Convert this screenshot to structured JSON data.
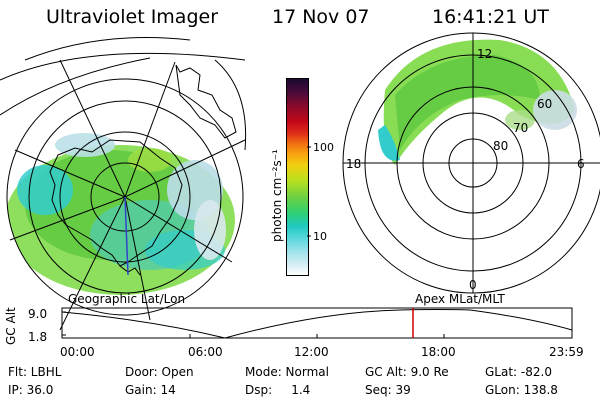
{
  "header": {
    "title": "Ultraviolet Imager",
    "date": "17 Nov 07",
    "time": "16:41:21 UT"
  },
  "left_panel": {
    "caption": "Geographic Lat/Lon"
  },
  "right_panel": {
    "caption": "Apex MLat/MLT",
    "mlt_labels": {
      "top": "12",
      "left": "18",
      "right": "6",
      "bottom": "0"
    },
    "lat_labels": [
      "60",
      "70",
      "80"
    ]
  },
  "colorbar": {
    "unit": "photon cm⁻²s⁻¹",
    "ticks": [
      "100",
      "10"
    ]
  },
  "altitude_plot": {
    "ylabel": "GC Alt",
    "yticks": [
      "9.0",
      "1.8"
    ],
    "xticks": [
      "00:00",
      "06:00",
      "12:00",
      "18:00",
      "23:59"
    ],
    "marker_color": "#cc0000",
    "line_color": "#000000"
  },
  "info": {
    "flt": "Flt: LBHL",
    "ip": "IP: 36.0",
    "door": "Door: Open",
    "gain": "Gain: 14",
    "mode": "Mode: Normal",
    "dsp": "Dsp:     1.4",
    "gcalt": "GC Alt: 9.0 Re",
    "seq": "Seq: 39",
    "glat": "GLat: -82.0",
    "glon": "GLon: 138.8"
  }
}
